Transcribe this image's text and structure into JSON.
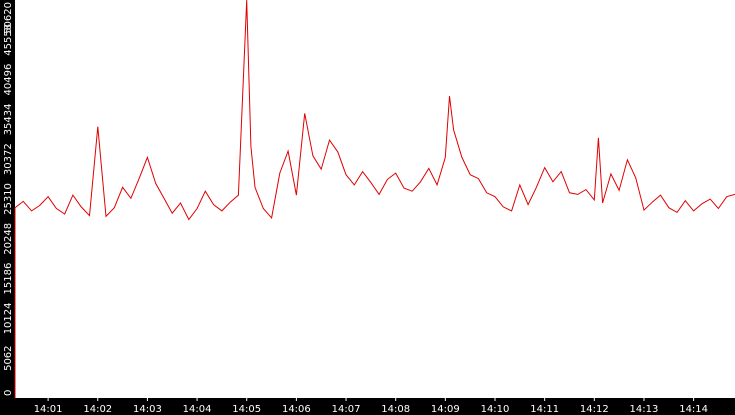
{
  "chart_data": {
    "type": "line",
    "title": "",
    "xlabel": "",
    "ylabel": "",
    "ylim": [
      0,
      50620
    ],
    "grid": false,
    "legend": "none",
    "y_ticks": [
      "0",
      "5062",
      "10124",
      "15186",
      "20248",
      "25310",
      "30372",
      "35434",
      "40496",
      "45558",
      "50620"
    ],
    "x_ticks": [
      "14:01",
      "14:02",
      "14:03",
      "14:04",
      "14:05",
      "14:06",
      "14:07",
      "14:08",
      "14:09",
      "14:10",
      "14:11",
      "14:12",
      "14:13",
      "14:14"
    ],
    "x_range": [
      "14:00:20",
      "14:14:50"
    ],
    "series": [
      {
        "color": "#e00000",
        "x": [
          "14:00:20",
          "14:00:30",
          "14:00:40",
          "14:00:50",
          "14:01:00",
          "14:01:10",
          "14:01:20",
          "14:01:30",
          "14:01:40",
          "14:01:50",
          "14:02:00",
          "14:02:10",
          "14:02:20",
          "14:02:30",
          "14:02:40",
          "14:02:50",
          "14:03:00",
          "14:03:10",
          "14:03:20",
          "14:03:30",
          "14:03:40",
          "14:03:50",
          "14:04:00",
          "14:04:10",
          "14:04:20",
          "14:04:30",
          "14:04:40",
          "14:04:50",
          "14:05:00",
          "14:05:05",
          "14:05:10",
          "14:05:20",
          "14:05:30",
          "14:05:40",
          "14:05:50",
          "14:06:00",
          "14:06:10",
          "14:06:20",
          "14:06:30",
          "14:06:40",
          "14:06:50",
          "14:07:00",
          "14:07:10",
          "14:07:20",
          "14:07:30",
          "14:07:40",
          "14:07:50",
          "14:08:00",
          "14:08:10",
          "14:08:20",
          "14:08:30",
          "14:08:40",
          "14:08:50",
          "14:09:00",
          "14:09:05",
          "14:09:10",
          "14:09:20",
          "14:09:30",
          "14:09:40",
          "14:09:50",
          "14:10:00",
          "14:10:10",
          "14:10:20",
          "14:10:30",
          "14:10:40",
          "14:10:50",
          "14:11:00",
          "14:11:10",
          "14:11:20",
          "14:11:30",
          "14:11:40",
          "14:11:50",
          "14:12:00",
          "14:12:05",
          "14:12:10",
          "14:12:20",
          "14:12:30",
          "14:12:40",
          "14:12:50",
          "14:13:00",
          "14:13:10",
          "14:13:20",
          "14:13:30",
          "14:13:40",
          "14:13:50",
          "14:14:00",
          "14:14:10",
          "14:14:20",
          "14:14:30",
          "14:14:40",
          "14:14:50"
        ],
        "values": [
          24200,
          25000,
          23800,
          24500,
          25600,
          24100,
          23400,
          25800,
          24300,
          23200,
          34500,
          23100,
          24200,
          26800,
          25400,
          27900,
          30600,
          27300,
          25400,
          23500,
          24800,
          22700,
          24100,
          26300,
          24600,
          23800,
          24900,
          25800,
          50600,
          32000,
          26800,
          24100,
          22900,
          28600,
          31400,
          25800,
          36200,
          30800,
          29100,
          32800,
          31300,
          28400,
          27100,
          28800,
          27400,
          25900,
          27800,
          28600,
          26700,
          26300,
          27500,
          29200,
          27100,
          30600,
          38400,
          34100,
          30600,
          28400,
          27900,
          26100,
          25600,
          24300,
          23800,
          27100,
          24600,
          26800,
          29300,
          27500,
          28800,
          26100,
          25900,
          26500,
          25200,
          33100,
          24800,
          28500,
          26400,
          30300,
          28000,
          23900,
          24900,
          25800,
          24200,
          23600,
          25100,
          23800,
          24700,
          25300,
          24100,
          25600,
          25900
        ]
      }
    ]
  }
}
